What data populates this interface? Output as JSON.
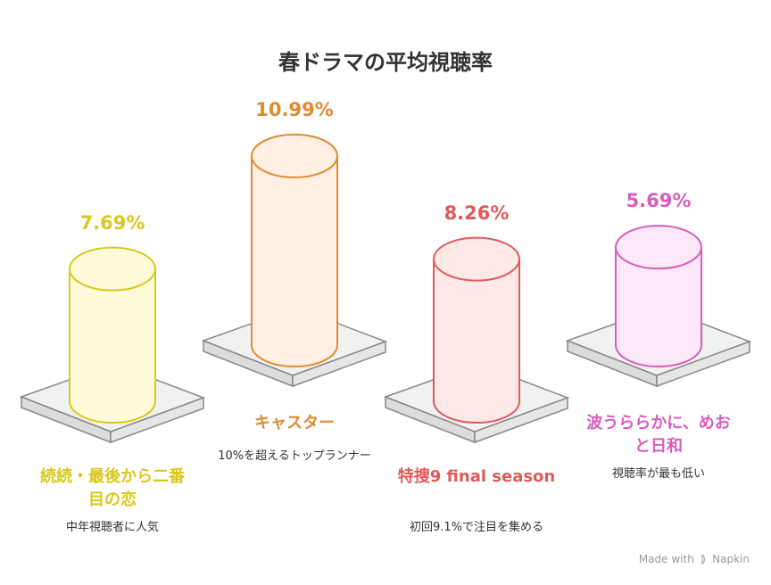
{
  "chart_data": {
    "type": "bar",
    "title": "春ドラマの平均視聴率",
    "categories": [
      "続続・最後から二番目の恋",
      "キャスター",
      "特捜9 final season",
      "波うららかに、めおと日和"
    ],
    "values": [
      7.69,
      10.99,
      8.26,
      5.69
    ],
    "value_labels": [
      "7.69%",
      "10.99%",
      "8.26%",
      "5.69%"
    ],
    "descriptions": [
      "中年視聴者に人気",
      "10%を超えるトップランナー",
      "初回9.1%で注目を集める",
      "視聴率が最も低い"
    ],
    "colors": [
      "#d9c81e",
      "#e08a30",
      "#e05a5a",
      "#d85cbc"
    ],
    "fills": [
      "#fffbd9",
      "#fff0e3",
      "#ffe8e8",
      "#fde8f8"
    ]
  },
  "watermark": {
    "text_before": "Made with",
    "icon": "napkin-icon",
    "text_after": "Napkin"
  }
}
